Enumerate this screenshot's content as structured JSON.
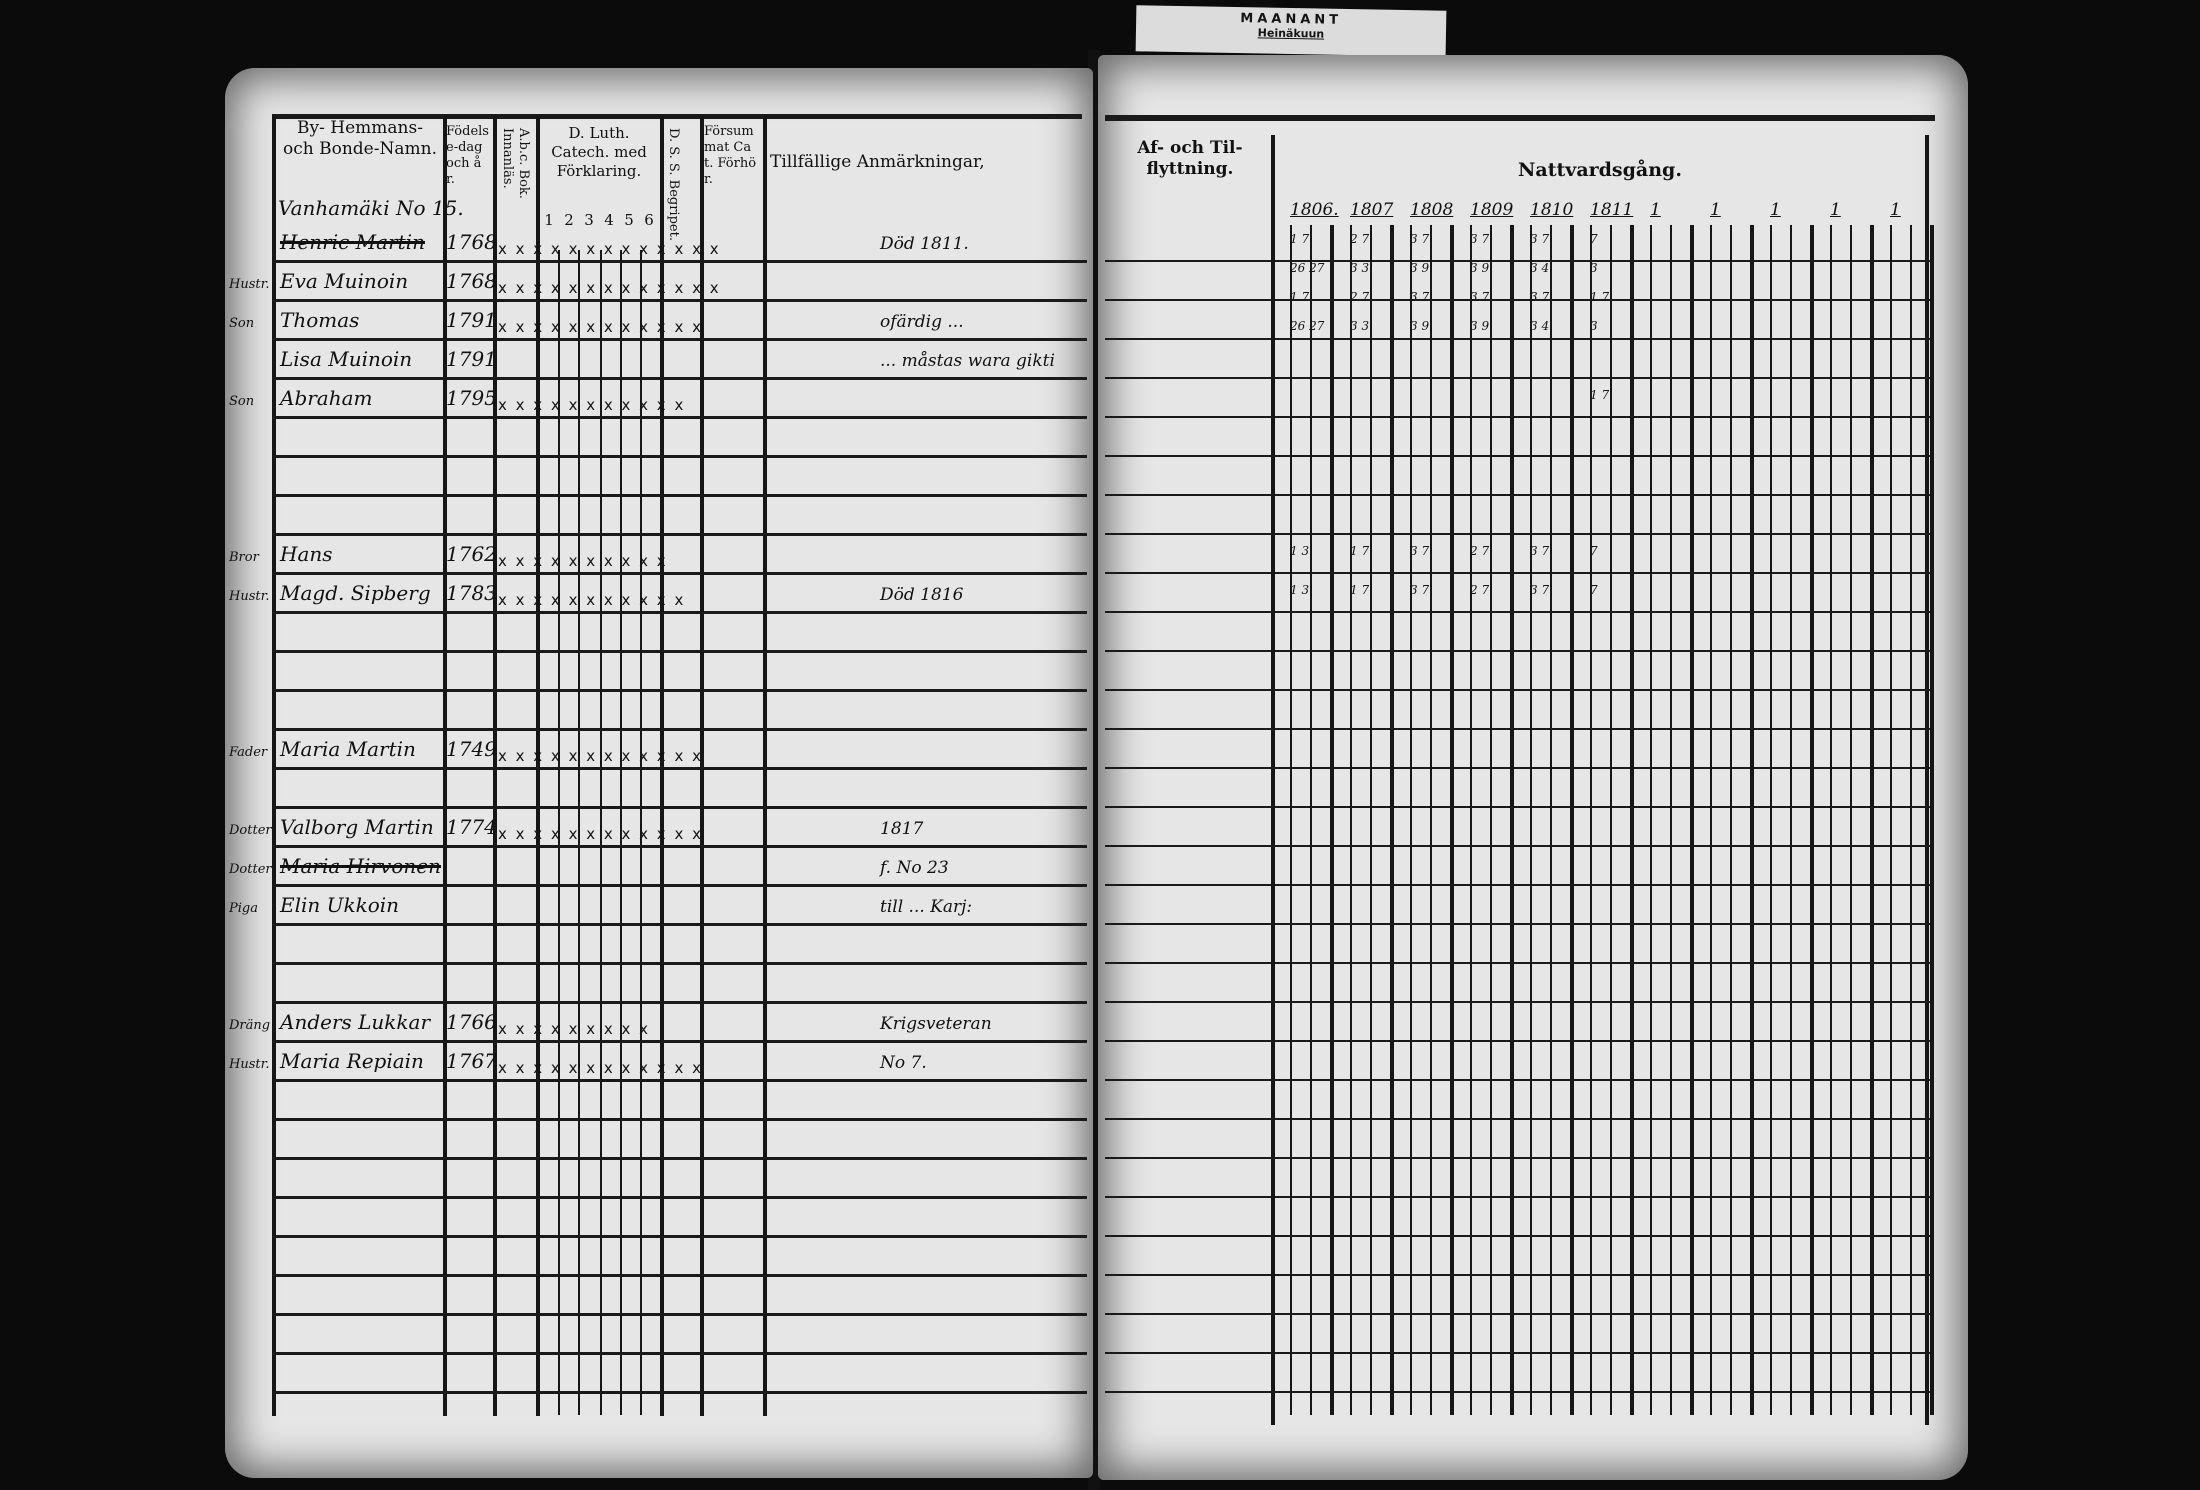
{
  "tag": {
    "line1": "MAANANT",
    "line2": "Heinäkuun"
  },
  "left_page": {
    "headers": {
      "names": "By- Hemmans- och Bonde-Namn.",
      "birth": "Födelse-dag och år.",
      "abc": "A.b.c. Bok. Innanläs.",
      "catechism": "D. Luth. Catech. med Förklaring.",
      "catechism_cols": [
        "1",
        "2",
        "3",
        "4",
        "5",
        "6"
      ],
      "dss": "D. S. S. Begripet.",
      "neglected": "Försummat Cat. Förhör.",
      "remarks": "Tillfällige Anmärkningar,"
    },
    "village": "Vanhamäki No 15.",
    "rows": [
      {
        "prefix": "",
        "name": "Henric Martin",
        "struck": true,
        "birth": "1768",
        "marks": "x x x x x x x x x x x x x",
        "remark": "Död 1811."
      },
      {
        "prefix": "Hustr.",
        "name": "Eva Muinoin",
        "struck": false,
        "birth": "1768",
        "marks": "x x x x x x x x x x x x x",
        "remark": ""
      },
      {
        "prefix": "Son",
        "name": "Thomas",
        "struck": false,
        "birth": "1791",
        "marks": "x  x x x x x x x x x x x",
        "remark": "ofärdig ..."
      },
      {
        "prefix": "",
        "name": "Lisa Muinoin",
        "struck": false,
        "birth": "1791",
        "marks": "",
        "remark": "... måstas wara gikti"
      },
      {
        "prefix": "Son",
        "name": "Abraham",
        "struck": false,
        "birth": "1795",
        "marks": "x x x x x x x x x x x",
        "remark": ""
      },
      {},
      {},
      {},
      {
        "prefix": "Bror",
        "name": "Hans",
        "struck": false,
        "birth": "1762",
        "marks": "x x x x x x x x x x",
        "remark": ""
      },
      {
        "prefix": "Hustr.",
        "name": "Magd. Sipberg",
        "struck": false,
        "birth": "1783",
        "marks": "x x x x x x x x x x x",
        "remark": "Död 1816"
      },
      {},
      {},
      {},
      {
        "prefix": "Fader",
        "name": "Maria Martin",
        "struck": false,
        "birth": "1749",
        "marks": "x x x x x x x x x x x x",
        "remark": ""
      },
      {},
      {
        "prefix": "Dotter",
        "name": "Valborg Martin",
        "struck": false,
        "birth": "1774",
        "marks": "x x x x x x x x x x x x",
        "remark": "1817"
      },
      {
        "prefix": "Dotter",
        "name": "Maria Hirvonen",
        "struck": true,
        "birth": "",
        "marks": "",
        "remark": "f. No 23"
      },
      {
        "prefix": "Piga",
        "name": "Elin Ukkoin",
        "struck": false,
        "birth": "",
        "marks": "",
        "remark": "till ... Karj:"
      },
      {},
      {},
      {
        "prefix": "Dräng",
        "name": "Anders Lukkar",
        "struck": false,
        "birth": "1766",
        "marks": "x x x x x x x x x",
        "remark": "Krigsveteran"
      },
      {
        "prefix": "Hustr.",
        "name": "Maria Repiain",
        "struck": false,
        "birth": "1767",
        "marks": "x x x x x x x x x x x x",
        "remark": "No 7."
      },
      {},
      {},
      {},
      {},
      {},
      {},
      {},
      {}
    ]
  },
  "right_page": {
    "headers": {
      "moving": "Af- och Til- flyttning.",
      "communion": "Nattvardsgång."
    },
    "years": [
      "1806.",
      "1807",
      "1808",
      "1809",
      "1810",
      "1811",
      "1",
      "1",
      "1",
      "1",
      "1"
    ],
    "communion_rows": [
      [
        "1 7",
        "2 7",
        "3 7",
        "3 7",
        "3 7",
        "7"
      ],
      [
        "26 27",
        "3 3",
        "3 9",
        "3 9",
        "3 4",
        "3"
      ],
      [
        "1 7",
        "2 7",
        "3 7",
        "3 7",
        "3 7",
        "1 7"
      ],
      [
        "26 27",
        "3 3",
        "3 9",
        "3 9",
        "3 4",
        "3"
      ],
      [
        "",
        "",
        "",
        "",
        "",
        "1 7"
      ],
      [],
      [],
      [],
      [
        "1 3",
        "1 7",
        "3 7",
        "2 7",
        "3 7",
        "7"
      ],
      [
        "1 3",
        "1 7",
        "3 7",
        "2 7",
        "3 7",
        "7"
      ]
    ]
  }
}
